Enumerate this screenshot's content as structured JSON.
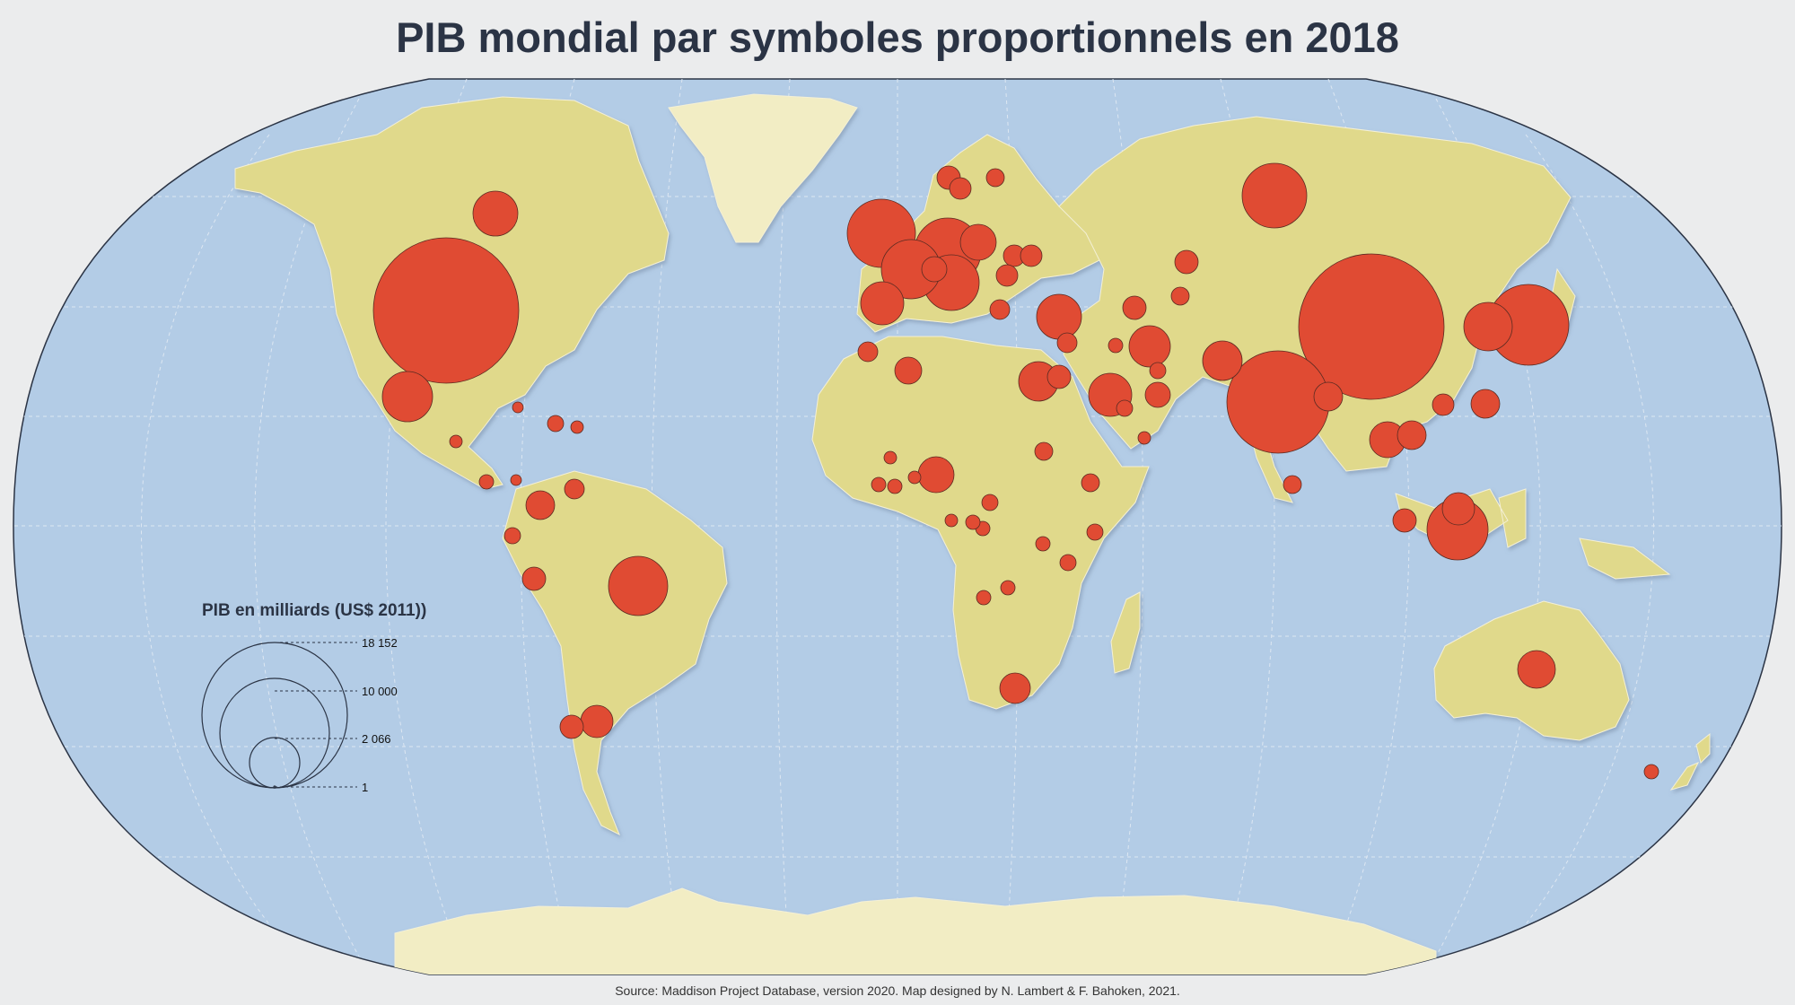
{
  "title": "PIB mondial par symboles proportionnels en 2018",
  "source": "Source: Maddison Project Database, version 2020. Map designed by N. Lambert & F. Bahoken, 2021.",
  "legend": {
    "title": "PIB en milliards (US$ 2011))",
    "values": [
      "18 152",
      "10 000",
      "2 066",
      "1"
    ]
  },
  "colors": {
    "ocean": "#b3cce6",
    "land": "#e0d98b",
    "ice": "#f2edc4",
    "symbol": "#e04b33",
    "outline": "#2b3445"
  },
  "symbols_gdp_billions": [
    {
      "approx": "United States",
      "value": 18152
    },
    {
      "approx": "China",
      "value": 17000
    },
    {
      "approx": "India",
      "value": 9000
    },
    {
      "approx": "Japan",
      "value": 5000
    },
    {
      "approx": "Germany",
      "value": 4000
    },
    {
      "approx": "Russia",
      "value": 3800
    },
    {
      "approx": "Indonesia",
      "value": 3000
    }
  ]
}
